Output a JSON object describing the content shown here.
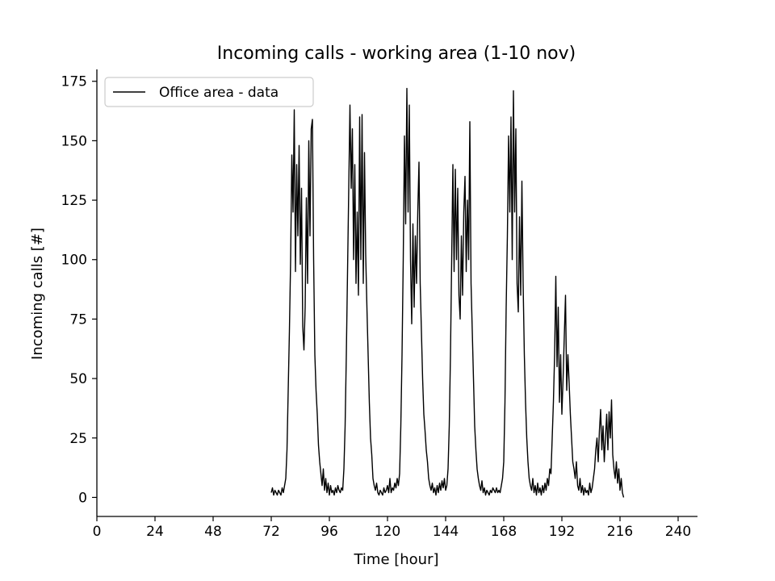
{
  "chart_data": {
    "type": "line",
    "title": "Incoming calls - working area (1-10 nov)",
    "xlabel": "Time [hour]",
    "ylabel": "Incoming calls [#]",
    "xlim": [
      0,
      248
    ],
    "ylim": [
      -8,
      180
    ],
    "xticks": [
      0,
      24,
      48,
      72,
      96,
      120,
      144,
      168,
      192,
      216,
      240
    ],
    "yticks": [
      0,
      25,
      50,
      75,
      100,
      125,
      150,
      175
    ],
    "grid": false,
    "legend_position": "top-left",
    "colors": {
      "line": "#000000",
      "axes": "#000000",
      "legend_border": "#cccccc"
    },
    "series": [
      {
        "name": "Office area - data",
        "points": [
          [
            72.0,
            2
          ],
          [
            72.5,
            4
          ],
          [
            73.0,
            1
          ],
          [
            73.5,
            3
          ],
          [
            74.0,
            2
          ],
          [
            74.5,
            1
          ],
          [
            75.0,
            3
          ],
          [
            75.5,
            2
          ],
          [
            76.0,
            1
          ],
          [
            76.5,
            4
          ],
          [
            77.0,
            2
          ],
          [
            77.5,
            5
          ],
          [
            78.0,
            8
          ],
          [
            78.5,
            20
          ],
          [
            79.0,
            45
          ],
          [
            79.5,
            70
          ],
          [
            80.0,
            100
          ],
          [
            80.5,
            144
          ],
          [
            81.0,
            120
          ],
          [
            81.5,
            163
          ],
          [
            82.0,
            95
          ],
          [
            82.5,
            140
          ],
          [
            83.0,
            110
          ],
          [
            83.5,
            148
          ],
          [
            84.0,
            98
          ],
          [
            84.5,
            130
          ],
          [
            85.0,
            72
          ],
          [
            85.5,
            62
          ],
          [
            86.0,
            80
          ],
          [
            86.5,
            126
          ],
          [
            87.0,
            90
          ],
          [
            87.5,
            150
          ],
          [
            88.0,
            110
          ],
          [
            88.5,
            155
          ],
          [
            89.0,
            159
          ],
          [
            89.5,
            100
          ],
          [
            90.0,
            60
          ],
          [
            90.5,
            45
          ],
          [
            91.0,
            35
          ],
          [
            91.5,
            22
          ],
          [
            92.0,
            15
          ],
          [
            92.5,
            10
          ],
          [
            93.0,
            5
          ],
          [
            93.5,
            12
          ],
          [
            94.0,
            3
          ],
          [
            94.5,
            8
          ],
          [
            95.0,
            2
          ],
          [
            95.5,
            6
          ],
          [
            96.0,
            1
          ],
          [
            96.5,
            5
          ],
          [
            97.0,
            2
          ],
          [
            97.5,
            3
          ],
          [
            98.0,
            1
          ],
          [
            98.5,
            4
          ],
          [
            99.0,
            2
          ],
          [
            99.5,
            5
          ],
          [
            100.0,
            3
          ],
          [
            100.5,
            2
          ],
          [
            101.0,
            4
          ],
          [
            101.5,
            3
          ],
          [
            102.0,
            12
          ],
          [
            102.5,
            30
          ],
          [
            103.0,
            60
          ],
          [
            103.5,
            95
          ],
          [
            104.0,
            130
          ],
          [
            104.5,
            165
          ],
          [
            105.0,
            130
          ],
          [
            105.5,
            155
          ],
          [
            106.0,
            100
          ],
          [
            106.5,
            140
          ],
          [
            107.0,
            90
          ],
          [
            107.5,
            120
          ],
          [
            108.0,
            85
          ],
          [
            108.5,
            160
          ],
          [
            109.0,
            100
          ],
          [
            109.5,
            161
          ],
          [
            110.0,
            90
          ],
          [
            110.5,
            145
          ],
          [
            111.0,
            102
          ],
          [
            111.5,
            80
          ],
          [
            112.0,
            60
          ],
          [
            112.5,
            40
          ],
          [
            113.0,
            25
          ],
          [
            113.5,
            18
          ],
          [
            114.0,
            8
          ],
          [
            114.5,
            5
          ],
          [
            115.0,
            3
          ],
          [
            115.5,
            6
          ],
          [
            116.0,
            2
          ],
          [
            116.5,
            1
          ],
          [
            117.0,
            3
          ],
          [
            117.5,
            2
          ],
          [
            118.0,
            1
          ],
          [
            118.5,
            4
          ],
          [
            119.0,
            2
          ],
          [
            119.5,
            3
          ],
          [
            120.0,
            5
          ],
          [
            120.5,
            2
          ],
          [
            121.0,
            8
          ],
          [
            121.5,
            2
          ],
          [
            122.0,
            4
          ],
          [
            122.5,
            3
          ],
          [
            123.0,
            6
          ],
          [
            123.5,
            4
          ],
          [
            124.0,
            8
          ],
          [
            124.5,
            5
          ],
          [
            125.0,
            10
          ],
          [
            125.5,
            30
          ],
          [
            126.0,
            60
          ],
          [
            126.5,
            100
          ],
          [
            127.0,
            152
          ],
          [
            127.5,
            115
          ],
          [
            128.0,
            172
          ],
          [
            128.5,
            120
          ],
          [
            129.0,
            165
          ],
          [
            129.5,
            100
          ],
          [
            130.0,
            73
          ],
          [
            130.5,
            115
          ],
          [
            131.0,
            80
          ],
          [
            131.5,
            110
          ],
          [
            132.0,
            90
          ],
          [
            132.5,
            120
          ],
          [
            133.0,
            141
          ],
          [
            133.5,
            90
          ],
          [
            134.0,
            70
          ],
          [
            134.5,
            50
          ],
          [
            135.0,
            35
          ],
          [
            135.5,
            28
          ],
          [
            136.0,
            20
          ],
          [
            136.5,
            15
          ],
          [
            137.0,
            8
          ],
          [
            137.5,
            5
          ],
          [
            138.0,
            3
          ],
          [
            138.5,
            6
          ],
          [
            139.0,
            2
          ],
          [
            139.5,
            4
          ],
          [
            140.0,
            1
          ],
          [
            140.5,
            5
          ],
          [
            141.0,
            2
          ],
          [
            141.5,
            6
          ],
          [
            142.0,
            3
          ],
          [
            142.5,
            7
          ],
          [
            143.0,
            4
          ],
          [
            143.5,
            8
          ],
          [
            144.0,
            3
          ],
          [
            144.5,
            5
          ],
          [
            145.0,
            12
          ],
          [
            145.5,
            30
          ],
          [
            146.0,
            60
          ],
          [
            146.5,
            100
          ],
          [
            147.0,
            140
          ],
          [
            147.5,
            95
          ],
          [
            148.0,
            138
          ],
          [
            148.5,
            100
          ],
          [
            149.0,
            130
          ],
          [
            149.5,
            85
          ],
          [
            150.0,
            75
          ],
          [
            150.5,
            110
          ],
          [
            151.0,
            85
          ],
          [
            151.5,
            120
          ],
          [
            152.0,
            135
          ],
          [
            152.5,
            95
          ],
          [
            153.0,
            125
          ],
          [
            153.5,
            100
          ],
          [
            154.0,
            158
          ],
          [
            154.5,
            90
          ],
          [
            155.0,
            70
          ],
          [
            155.5,
            50
          ],
          [
            156.0,
            30
          ],
          [
            156.5,
            20
          ],
          [
            157.0,
            12
          ],
          [
            157.5,
            8
          ],
          [
            158.0,
            5
          ],
          [
            158.5,
            3
          ],
          [
            159.0,
            7
          ],
          [
            159.5,
            2
          ],
          [
            160.0,
            4
          ],
          [
            160.5,
            1
          ],
          [
            161.0,
            3
          ],
          [
            161.5,
            2
          ],
          [
            162.0,
            1
          ],
          [
            162.5,
            3
          ],
          [
            163.0,
            2
          ],
          [
            163.5,
            4
          ],
          [
            164.0,
            3
          ],
          [
            164.5,
            2
          ],
          [
            165.0,
            4
          ],
          [
            165.5,
            2
          ],
          [
            166.0,
            3
          ],
          [
            166.5,
            2
          ],
          [
            167.0,
            5
          ],
          [
            167.5,
            8
          ],
          [
            168.0,
            15
          ],
          [
            168.5,
            40
          ],
          [
            169.0,
            80
          ],
          [
            169.5,
            110
          ],
          [
            170.0,
            152
          ],
          [
            170.5,
            120
          ],
          [
            171.0,
            160
          ],
          [
            171.5,
            100
          ],
          [
            172.0,
            171
          ],
          [
            172.5,
            120
          ],
          [
            173.0,
            155
          ],
          [
            173.5,
            90
          ],
          [
            174.0,
            78
          ],
          [
            174.5,
            118
          ],
          [
            175.0,
            85
          ],
          [
            175.5,
            133
          ],
          [
            176.0,
            90
          ],
          [
            176.5,
            60
          ],
          [
            177.0,
            40
          ],
          [
            177.5,
            25
          ],
          [
            178.0,
            15
          ],
          [
            178.5,
            8
          ],
          [
            179.0,
            5
          ],
          [
            179.5,
            3
          ],
          [
            180.0,
            8
          ],
          [
            180.5,
            2
          ],
          [
            181.0,
            5
          ],
          [
            181.5,
            1
          ],
          [
            182.0,
            6
          ],
          [
            182.5,
            2
          ],
          [
            183.0,
            4
          ],
          [
            183.5,
            1
          ],
          [
            184.0,
            5
          ],
          [
            184.5,
            2
          ],
          [
            185.0,
            6
          ],
          [
            185.5,
            3
          ],
          [
            186.0,
            8
          ],
          [
            186.5,
            5
          ],
          [
            187.0,
            12
          ],
          [
            187.5,
            10
          ],
          [
            188.0,
            25
          ],
          [
            188.5,
            40
          ],
          [
            189.0,
            60
          ],
          [
            189.5,
            93
          ],
          [
            190.0,
            55
          ],
          [
            190.5,
            80
          ],
          [
            191.0,
            40
          ],
          [
            191.5,
            60
          ],
          [
            192.0,
            35
          ],
          [
            192.5,
            50
          ],
          [
            193.0,
            68
          ],
          [
            193.5,
            85
          ],
          [
            194.0,
            45
          ],
          [
            194.5,
            60
          ],
          [
            195.0,
            48
          ],
          [
            195.5,
            35
          ],
          [
            196.0,
            25
          ],
          [
            196.5,
            15
          ],
          [
            197.0,
            12
          ],
          [
            197.5,
            8
          ],
          [
            198.0,
            15
          ],
          [
            198.5,
            5
          ],
          [
            199.0,
            3
          ],
          [
            199.5,
            8
          ],
          [
            200.0,
            2
          ],
          [
            200.5,
            5
          ],
          [
            201.0,
            1
          ],
          [
            201.5,
            4
          ],
          [
            202.0,
            2
          ],
          [
            202.5,
            3
          ],
          [
            203.0,
            1
          ],
          [
            203.5,
            6
          ],
          [
            204.0,
            2
          ],
          [
            204.5,
            4
          ],
          [
            205.0,
            8
          ],
          [
            205.5,
            12
          ],
          [
            206.0,
            20
          ],
          [
            206.5,
            25
          ],
          [
            207.0,
            15
          ],
          [
            207.5,
            28
          ],
          [
            208.0,
            37
          ],
          [
            208.5,
            20
          ],
          [
            209.0,
            30
          ],
          [
            209.5,
            15
          ],
          [
            210.0,
            25
          ],
          [
            210.5,
            35
          ],
          [
            211.0,
            20
          ],
          [
            211.5,
            36
          ],
          [
            212.0,
            25
          ],
          [
            212.5,
            41
          ],
          [
            213.0,
            18
          ],
          [
            213.5,
            12
          ],
          [
            214.0,
            8
          ],
          [
            214.5,
            15
          ],
          [
            215.0,
            6
          ],
          [
            215.5,
            12
          ],
          [
            216.0,
            3
          ],
          [
            216.5,
            8
          ],
          [
            217.0,
            2
          ],
          [
            217.5,
            0
          ]
        ]
      }
    ]
  }
}
